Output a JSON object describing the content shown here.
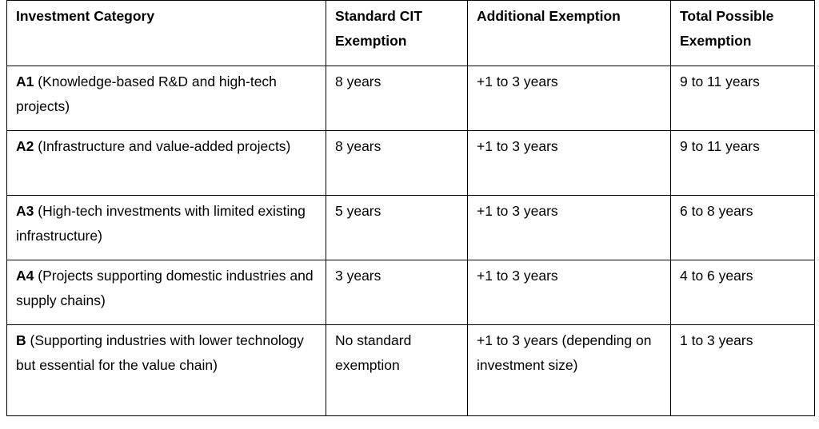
{
  "table": {
    "header": [
      "Investment Category",
      "Standard CIT Exemption",
      "Additional Exemption",
      "Total Possible Exemption"
    ],
    "rows": [
      [
        {
          "code": "A1",
          "desc": "(Knowledge-based R&D and high-tech projects)"
        },
        "8 years",
        "+1 to 3 years",
        "9 to 11 years"
      ],
      [
        {
          "code": "A2",
          "desc": "(Infrastructure and value-added projects)"
        },
        "8 years",
        "+1 to 3 years",
        "9 to 11 years"
      ],
      [
        {
          "code": "A3",
          "desc": "(High-tech investments with limited existing infrastructure)"
        },
        "5 years",
        "+1 to 3 years",
        "6 to 8 years"
      ],
      [
        {
          "code": "A4",
          "desc": "(Projects supporting domestic industries and supply chains)"
        },
        "3 years",
        "+1 to 3 years",
        "4 to 6 years"
      ],
      [
        {
          "code": "B",
          "desc": "(Supporting industries with lower technology but essential for the value chain)"
        },
        "No standard exemption",
        "+1 to 3 years (depending on investment size)",
        "1 to 3 years"
      ]
    ]
  }
}
